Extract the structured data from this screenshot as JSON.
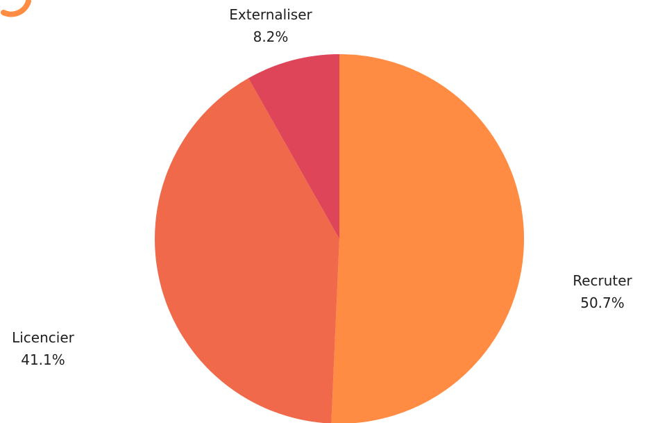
{
  "chart_data": {
    "type": "pie",
    "title": "",
    "slices": [
      {
        "label": "Recruter",
        "value": 50.7,
        "value_label": "50.7%",
        "color": "#ff8c42"
      },
      {
        "label": "Licencier",
        "value": 41.1,
        "value_label": "41.1%",
        "color": "#f0694b"
      },
      {
        "label": "Externaliser",
        "value": 8.2,
        "value_label": "8.2%",
        "color": "#de4558"
      }
    ],
    "start": "12 o'clock",
    "direction": "clockwise",
    "legend": "none",
    "labels": "outside slices, name above percentage"
  },
  "decor": {
    "corner_badge_color": "#ff8c42"
  }
}
